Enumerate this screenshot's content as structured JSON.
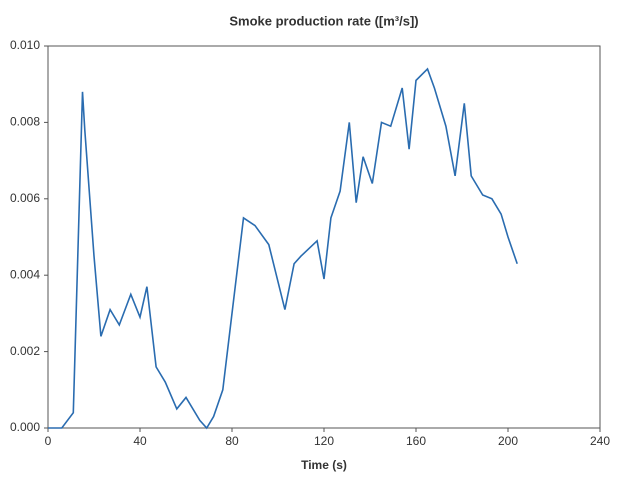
{
  "chart_data": {
    "type": "line",
    "title": "Smoke production rate ([m³/s])",
    "x_label": "Time (s)",
    "x": [
      0,
      6,
      11,
      15,
      16,
      20,
      23,
      27,
      31,
      36,
      40,
      43,
      47,
      51,
      56,
      60,
      66,
      69,
      72,
      76,
      79,
      85,
      90,
      96,
      103,
      107,
      110,
      117,
      120,
      123,
      127,
      131,
      134,
      137,
      141,
      145,
      149,
      154,
      157,
      160,
      165,
      168,
      173,
      177,
      181,
      184,
      189,
      193,
      197,
      200,
      204
    ],
    "series": [
      {
        "color": "#2a6cb0",
        "values": [
          0,
          0,
          0.0004,
          0.0088,
          0.0078,
          0.0045,
          0.0024,
          0.0031,
          0.0027,
          0.0035,
          0.0029,
          0.0037,
          0.0016,
          0.0012,
          0.0005,
          0.0008,
          0.0002,
          0.0,
          0.0003,
          0.001,
          0.0025,
          0.0055,
          0.0053,
          0.0048,
          0.0031,
          0.0043,
          0.0045,
          0.0049,
          0.0039,
          0.0055,
          0.0062,
          0.008,
          0.0059,
          0.0071,
          0.0064,
          0.008,
          0.0079,
          0.0089,
          0.0073,
          0.0091,
          0.0094,
          0.0089,
          0.0079,
          0.0066,
          0.0085,
          0.0066,
          0.0061,
          0.006,
          0.0056,
          0.005,
          0.0043
        ]
      }
    ],
    "xlim": [
      0,
      240
    ],
    "xticks": [
      0,
      40,
      80,
      120,
      160,
      200,
      240
    ],
    "ylim": [
      0,
      0.01
    ],
    "yticks": [
      {
        "value": 0,
        "label": "0.000"
      },
      {
        "value": 0.002,
        "label": "0.002"
      },
      {
        "value": 0.004,
        "label": "0.004"
      },
      {
        "value": 0.006,
        "label": "0.006"
      },
      {
        "value": 0.008,
        "label": "0.008"
      },
      {
        "value": 0.01,
        "label": "0.010"
      }
    ]
  }
}
